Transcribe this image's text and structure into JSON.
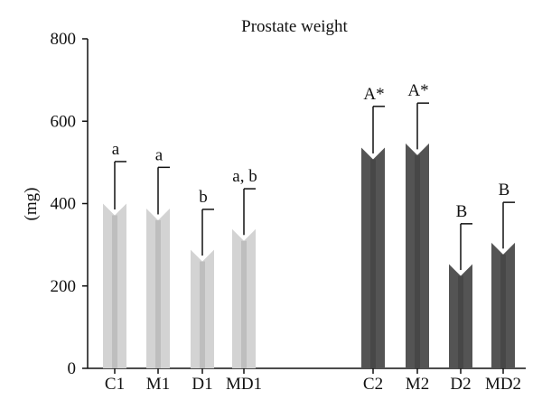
{
  "chart_data": {
    "type": "bar",
    "title": "Prostate weight",
    "ylabel": "(mg)",
    "xlabel": "",
    "ylim": [
      0,
      800
    ],
    "yticks": [
      0,
      200,
      400,
      600,
      800
    ],
    "grid": false,
    "legend": "none",
    "categories": [
      "C1",
      "M1",
      "D1",
      "MD1",
      "C2",
      "M2",
      "D2",
      "MD2"
    ],
    "values": [
      400,
      388,
      288,
      338,
      536,
      546,
      253,
      305
    ],
    "errors": [
      102,
      100,
      98,
      98,
      100,
      98,
      98,
      98
    ],
    "annotations": [
      "a",
      "a",
      "b",
      "a, b",
      "A*",
      "A*",
      "B",
      "B"
    ],
    "groups": [
      {
        "categories": [
          "C1",
          "M1",
          "D1",
          "MD1"
        ],
        "color": "#d3d3d3",
        "shade": "#bebebe"
      },
      {
        "categories": [
          "C2",
          "M2",
          "D2",
          "MD2"
        ],
        "color": "#545454",
        "shade": "#474747"
      }
    ]
  }
}
